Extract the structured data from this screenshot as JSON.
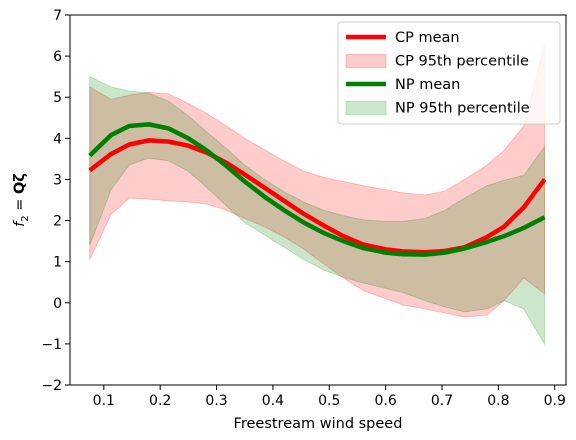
{
  "chart_data": {
    "type": "line",
    "xlabel": "Freestream wind speed",
    "ylabel_prefix": "f",
    "ylabel_sub": "2",
    "ylabel_rest": " = ",
    "ylabel_bold": "Qζ",
    "xlim": [
      0.04,
      0.92
    ],
    "ylim": [
      -2,
      7
    ],
    "xticks": [
      0.1,
      0.2,
      0.3,
      0.4,
      0.5,
      0.6,
      0.7,
      0.8,
      0.9
    ],
    "xtick_labels": [
      "0.1",
      "0.2",
      "0.3",
      "0.4",
      "0.5",
      "0.6",
      "0.7",
      "0.8",
      "0.9"
    ],
    "yticks": [
      -2,
      -1,
      0,
      1,
      2,
      3,
      4,
      5,
      6,
      7
    ],
    "ytick_labels": [
      "−2",
      "−1",
      "0",
      "1",
      "2",
      "3",
      "4",
      "5",
      "6",
      "7"
    ],
    "grid": false,
    "legend_position": "top-right",
    "x": [
      0.075,
      0.113,
      0.145,
      0.18,
      0.215,
      0.25,
      0.283,
      0.318,
      0.35,
      0.385,
      0.42,
      0.455,
      0.49,
      0.525,
      0.56,
      0.6,
      0.63,
      0.67,
      0.705,
      0.74,
      0.78,
      0.81,
      0.845,
      0.882
    ],
    "series": [
      {
        "name": "CP mean",
        "kind": "line",
        "color": "#ff0000",
        "values": [
          3.22,
          3.62,
          3.85,
          3.95,
          3.92,
          3.82,
          3.65,
          3.4,
          3.12,
          2.8,
          2.48,
          2.16,
          1.88,
          1.62,
          1.42,
          1.3,
          1.25,
          1.23,
          1.26,
          1.35,
          1.6,
          1.85,
          2.32,
          3.0
        ]
      },
      {
        "name": "CP 95th percentile",
        "kind": "band",
        "color": "#ff0000",
        "opacity": 0.2,
        "upper": [
          5.25,
          4.95,
          5.05,
          5.12,
          5.08,
          4.85,
          4.6,
          4.3,
          4.0,
          3.72,
          3.45,
          3.2,
          3.05,
          2.95,
          2.85,
          2.75,
          2.68,
          2.62,
          2.72,
          3.0,
          3.35,
          3.7,
          4.3,
          6.3
        ],
        "lower": [
          1.05,
          2.15,
          2.55,
          2.52,
          2.48,
          2.45,
          2.4,
          2.25,
          2.05,
          1.85,
          1.6,
          1.3,
          0.95,
          0.6,
          0.3,
          0.1,
          -0.05,
          -0.15,
          -0.25,
          -0.35,
          -0.3,
          0.05,
          0.6,
          0.22
        ]
      },
      {
        "name": "NP mean",
        "kind": "line",
        "color": "#008000",
        "values": [
          3.58,
          4.08,
          4.3,
          4.34,
          4.24,
          4.0,
          3.7,
          3.32,
          2.95,
          2.58,
          2.25,
          1.95,
          1.7,
          1.5,
          1.33,
          1.22,
          1.18,
          1.17,
          1.22,
          1.32,
          1.48,
          1.62,
          1.82,
          2.08
        ]
      },
      {
        "name": "NP 95th percentile",
        "kind": "band",
        "color": "#008000",
        "opacity": 0.2,
        "upper": [
          5.5,
          5.25,
          5.15,
          5.1,
          4.9,
          4.55,
          4.15,
          3.75,
          3.35,
          3.0,
          2.7,
          2.45,
          2.25,
          2.12,
          2.02,
          1.98,
          1.98,
          2.05,
          2.25,
          2.55,
          2.85,
          2.98,
          3.1,
          3.8
        ],
        "lower": [
          1.4,
          2.75,
          3.35,
          3.52,
          3.45,
          3.2,
          2.8,
          2.35,
          1.95,
          1.65,
          1.35,
          1.05,
          0.8,
          0.62,
          0.48,
          0.35,
          0.25,
          0.05,
          -0.1,
          -0.22,
          -0.15,
          0.05,
          -0.15,
          -1.0
        ]
      }
    ]
  }
}
